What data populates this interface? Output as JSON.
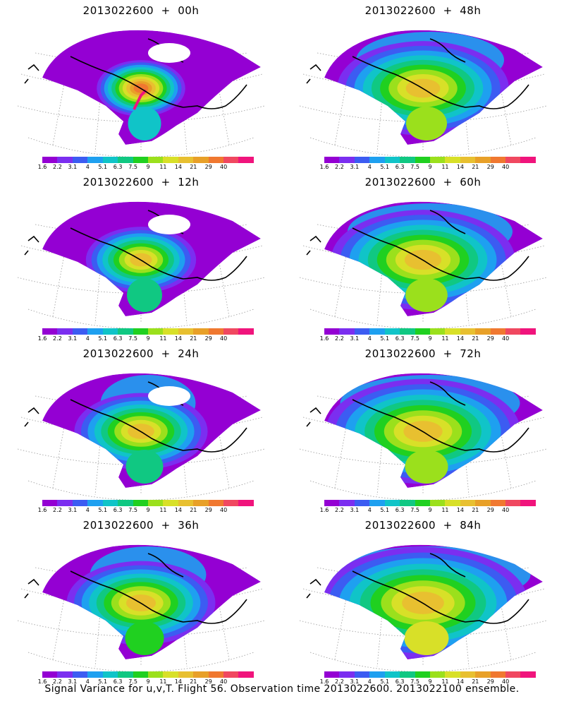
{
  "panels": [
    {
      "title": "2013022600  +  00h",
      "spread": 0.15,
      "peak": 1.0,
      "hot_streak": true
    },
    {
      "title": "2013022600  +  48h",
      "spread": 0.7,
      "peak": 0.72,
      "hot_streak": false
    },
    {
      "title": "2013022600  +  12h",
      "spread": 0.3,
      "peak": 0.78,
      "hot_streak": false
    },
    {
      "title": "2013022600  +  60h",
      "spread": 0.78,
      "peak": 0.74,
      "hot_streak": false
    },
    {
      "title": "2013022600  +  24h",
      "spread": 0.45,
      "peak": 0.8,
      "hot_streak": false
    },
    {
      "title": "2013022600  +  72h",
      "spread": 0.85,
      "peak": 0.76,
      "hot_streak": false
    },
    {
      "title": "2013022600  +  36h",
      "spread": 0.55,
      "peak": 0.7,
      "hot_streak": false
    },
    {
      "title": "2013022600  +  84h",
      "spread": 0.95,
      "peak": 0.78,
      "hot_streak": false
    }
  ],
  "colorbar": {
    "labels": [
      "1.6",
      "2.2",
      "3.1",
      "4",
      "5.1",
      "6.3",
      "7.5",
      "9",
      "11",
      "14",
      "21",
      "29",
      "40"
    ],
    "colors": [
      "#9400d3",
      "#7b2ef0",
      "#3c5cf2",
      "#1ea0f0",
      "#10c4c8",
      "#10c882",
      "#20d020",
      "#9be01c",
      "#d8e028",
      "#e8c030",
      "#e8a028",
      "#f07830",
      "#f04860",
      "#f0147c"
    ]
  },
  "caption": "Signal Variance for u,v,T.  Flight 56.  Observation time 2013022600.  2013022100 ensemble."
}
